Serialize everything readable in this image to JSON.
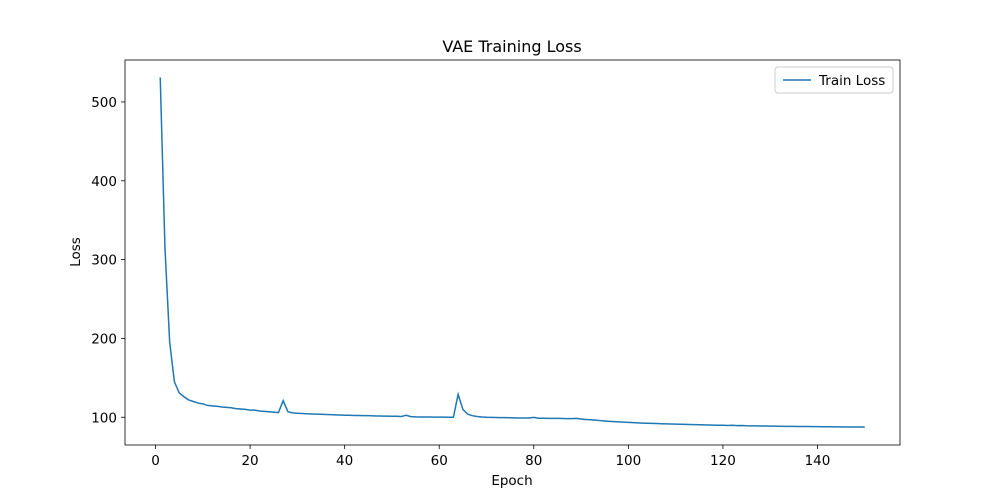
{
  "chart_data": {
    "type": "line",
    "title": "VAE Training Loss",
    "x_label": "Epoch",
    "y_label": "Loss",
    "x": [
      1,
      2,
      3,
      4,
      5,
      6,
      7,
      8,
      9,
      10,
      11,
      12,
      13,
      14,
      15,
      16,
      17,
      18,
      19,
      20,
      21,
      22,
      23,
      24,
      25,
      26,
      27,
      28,
      29,
      30,
      31,
      32,
      33,
      34,
      35,
      36,
      37,
      38,
      39,
      40,
      41,
      42,
      43,
      44,
      45,
      46,
      47,
      48,
      49,
      50,
      51,
      52,
      53,
      54,
      55,
      56,
      57,
      58,
      59,
      60,
      61,
      62,
      63,
      64,
      65,
      66,
      67,
      68,
      69,
      70,
      71,
      72,
      73,
      74,
      75,
      76,
      77,
      78,
      79,
      80,
      81,
      82,
      83,
      84,
      85,
      86,
      87,
      88,
      89,
      90,
      91,
      92,
      93,
      94,
      95,
      96,
      97,
      98,
      99,
      100,
      101,
      102,
      103,
      104,
      105,
      106,
      107,
      108,
      109,
      110,
      111,
      112,
      113,
      114,
      115,
      116,
      117,
      118,
      119,
      120,
      121,
      122,
      123,
      124,
      125,
      126,
      127,
      128,
      129,
      130,
      131,
      132,
      133,
      134,
      135,
      136,
      137,
      138,
      139,
      140,
      141,
      142,
      143,
      144,
      145,
      146,
      147,
      148,
      149,
      150
    ],
    "series": [
      {
        "name": "Train Loss",
        "color": "#1f77b4",
        "values": [
          531,
          315,
          195,
          145,
          131,
          126,
          122,
          120,
          118,
          117,
          115,
          114.5,
          114,
          113,
          112.5,
          112,
          111,
          110.5,
          110,
          109,
          109,
          108,
          107.5,
          107,
          106.5,
          106,
          121,
          107,
          105.5,
          105,
          104.8,
          104.5,
          104.2,
          104,
          103.8,
          103.5,
          103.3,
          103,
          102.8,
          102.6,
          102.5,
          102.3,
          102.2,
          102.1,
          102,
          101.8,
          101.6,
          101.5,
          101.4,
          101.3,
          101.2,
          101,
          102.5,
          100.8,
          100.5,
          100.4,
          100.4,
          100.3,
          100.2,
          100.2,
          100.1,
          100,
          100,
          129,
          110,
          104,
          102,
          101,
          100.4,
          100,
          99.8,
          99.7,
          99.6,
          99.5,
          99.3,
          99.2,
          99.1,
          99,
          99,
          99.8,
          98.8,
          98.7,
          98.6,
          98.6,
          98.5,
          98.4,
          98.3,
          98.2,
          98.6,
          97.8,
          97.2,
          96.8,
          96.3,
          95.8,
          95.3,
          94.8,
          94.4,
          94.1,
          93.8,
          93.5,
          93.2,
          92.9,
          92.6,
          92.4,
          92.2,
          92,
          91.8,
          91.6,
          91.4,
          91.3,
          91.1,
          91,
          90.8,
          90.6,
          90.5,
          90.3,
          90.2,
          90,
          89.9,
          89.8,
          89.6,
          89.8,
          89.4,
          89.6,
          89.2,
          89.1,
          89,
          88.9,
          88.9,
          88.8,
          88.7,
          88.6,
          88.5,
          88.5,
          88.4,
          88.3,
          88.3,
          88.2,
          88.1,
          88.1,
          88,
          87.9,
          87.9,
          87.8,
          87.8,
          87.7,
          87.7,
          87.6,
          87.6,
          87.5
        ]
      }
    ],
    "xlim": [
      -6.45,
      157.45
    ],
    "xticks": [
      0,
      20,
      40,
      60,
      80,
      100,
      120,
      140
    ],
    "ylim": [
      64.8,
      553.2
    ],
    "yticks": [
      100,
      200,
      300,
      400,
      500
    ],
    "grid": false,
    "legend": "upper-right"
  }
}
